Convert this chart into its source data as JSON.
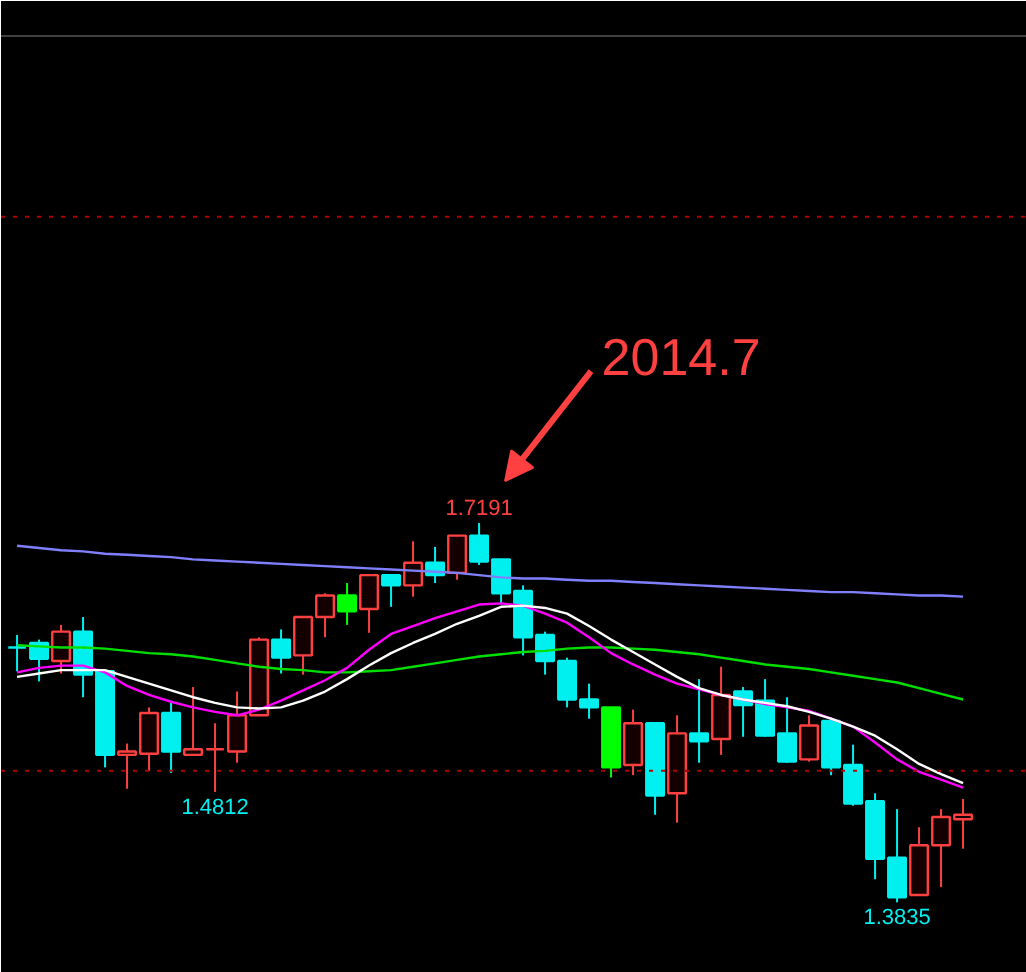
{
  "chart_data": {
    "type": "candlestick",
    "categories": [
      null,
      null,
      null,
      null,
      null,
      null,
      null,
      null,
      null,
      null,
      null,
      null,
      null,
      null,
      null,
      null,
      null,
      null,
      null,
      null,
      null,
      null,
      null,
      null,
      null,
      null,
      null,
      null,
      null,
      null,
      null,
      null,
      null,
      null,
      null,
      null,
      null,
      null,
      null,
      null,
      null,
      null,
      null,
      null
    ],
    "ohlc": [
      [
        1.609,
        1.62,
        1.588,
        1.609
      ],
      [
        1.613,
        1.616,
        1.579,
        1.599
      ],
      [
        1.597,
        1.629,
        1.586,
        1.623
      ],
      [
        1.623,
        1.636,
        1.565,
        1.585
      ],
      [
        1.588,
        1.588,
        1.503,
        1.514
      ],
      [
        1.514,
        1.524,
        1.484,
        1.517
      ],
      [
        1.515,
        1.556,
        1.5,
        1.551
      ],
      [
        1.551,
        1.56,
        1.498,
        1.517
      ],
      [
        1.514,
        1.574,
        1.514,
        1.519
      ],
      [
        1.519,
        1.542,
        1.4812,
        1.519
      ],
      [
        1.517,
        1.57,
        1.507,
        1.549
      ],
      [
        1.549,
        1.618,
        1.549,
        1.616
      ],
      [
        1.616,
        1.625,
        1.586,
        1.6
      ],
      [
        1.602,
        1.636,
        1.585,
        1.636
      ],
      [
        1.636,
        1.657,
        1.618,
        1.655
      ],
      [
        1.655,
        1.666,
        1.629,
        1.641
      ],
      [
        1.643,
        1.673,
        1.622,
        1.673
      ],
      [
        1.673,
        1.673,
        1.645,
        1.664
      ],
      [
        1.664,
        1.703,
        1.654,
        1.684
      ],
      [
        1.684,
        1.698,
        1.666,
        1.673
      ],
      [
        1.675,
        1.708,
        1.669,
        1.708
      ],
      [
        1.708,
        1.7191,
        1.682,
        1.685
      ],
      [
        1.687,
        1.687,
        1.648,
        1.657
      ],
      [
        1.659,
        1.664,
        1.602,
        1.618
      ],
      [
        1.62,
        1.623,
        1.585,
        1.597
      ],
      [
        1.597,
        1.6,
        1.556,
        1.563
      ],
      [
        1.563,
        1.577,
        1.546,
        1.556
      ],
      [
        1.556,
        1.556,
        1.494,
        1.503
      ],
      [
        1.505,
        1.554,
        1.496,
        1.542
      ],
      [
        1.542,
        1.542,
        1.461,
        1.478
      ],
      [
        1.48,
        1.549,
        1.454,
        1.533
      ],
      [
        1.533,
        1.581,
        1.507,
        1.526
      ],
      [
        1.528,
        1.592,
        1.514,
        1.567
      ],
      [
        1.57,
        1.574,
        1.53,
        1.558
      ],
      [
        1.562,
        1.581,
        1.53,
        1.531
      ],
      [
        1.533,
        1.565,
        1.507,
        1.508
      ],
      [
        1.51,
        1.549,
        1.508,
        1.54
      ],
      [
        1.544,
        1.547,
        1.496,
        1.503
      ],
      [
        1.505,
        1.523,
        1.469,
        1.471
      ],
      [
        1.473,
        1.48,
        1.404,
        1.422
      ],
      [
        1.423,
        1.466,
        1.3835,
        1.388
      ],
      [
        1.39,
        1.45,
        1.39,
        1.434
      ],
      [
        1.434,
        1.466,
        1.397,
        1.459
      ],
      [
        1.457,
        1.475,
        1.431,
        1.461
      ]
    ],
    "colors": [
      "#00f0f0",
      "#00f0f0",
      "#ff4040",
      "#00f0f0",
      "#00f0f0",
      "#ff4040",
      "#ff4040",
      "#00f0f0",
      "#ff4040",
      "#ff4040",
      "#ff4040",
      "#ff4040",
      "#00f0f0",
      "#ff4040",
      "#ff4040",
      "#00ff00",
      "#ff4040",
      "#00f0f0",
      "#ff4040",
      "#00f0f0",
      "#ff4040",
      "#00f0f0",
      "#00f0f0",
      "#00f0f0",
      "#00f0f0",
      "#00f0f0",
      "#00f0f0",
      "#00ff00",
      "#ff4040",
      "#00f0f0",
      "#ff4040",
      "#00f0f0",
      "#ff4040",
      "#00f0f0",
      "#00f0f0",
      "#00f0f0",
      "#ff4040",
      "#00f0f0",
      "#00f0f0",
      "#00f0f0",
      "#00f0f0",
      "#ff4040",
      "#ff4040",
      "#ff4040"
    ],
    "series": [
      {
        "type": "line",
        "color": "#8080ff",
        "values": [
          1.699,
          1.697,
          1.695,
          1.694,
          1.692,
          1.691,
          1.69,
          1.689,
          1.687,
          1.686,
          1.685,
          1.684,
          1.683,
          1.682,
          1.681,
          1.68,
          1.679,
          1.678,
          1.677,
          1.676,
          1.675,
          1.673,
          1.671,
          1.67,
          1.67,
          1.669,
          1.668,
          1.668,
          1.667,
          1.666,
          1.665,
          1.664,
          1.663,
          1.662,
          1.661,
          1.66,
          1.659,
          1.658,
          1.658,
          1.657,
          1.656,
          1.655,
          1.655,
          1.654
        ]
      },
      {
        "type": "line",
        "color": "#00e000",
        "values": [
          1.611,
          1.61,
          1.609,
          1.609,
          1.608,
          1.606,
          1.604,
          1.603,
          1.601,
          1.598,
          1.595,
          1.592,
          1.59,
          1.589,
          1.587,
          1.587,
          1.588,
          1.589,
          1.592,
          1.595,
          1.598,
          1.601,
          1.603,
          1.605,
          1.606,
          1.608,
          1.609,
          1.609,
          1.608,
          1.607,
          1.605,
          1.603,
          1.6,
          1.597,
          1.594,
          1.592,
          1.59,
          1.587,
          1.584,
          1.581,
          1.578,
          1.573,
          1.568,
          1.563
        ]
      },
      {
        "type": "line",
        "color": "#ff00ff",
        "values": [
          1.587,
          1.591,
          1.593,
          1.593,
          1.587,
          1.575,
          1.567,
          1.561,
          1.556,
          1.552,
          1.549,
          1.554,
          1.562,
          1.571,
          1.58,
          1.591,
          1.607,
          1.621,
          1.628,
          1.635,
          1.641,
          1.647,
          1.648,
          1.646,
          1.639,
          1.631,
          1.618,
          1.604,
          1.594,
          1.585,
          1.577,
          1.572,
          1.567,
          1.563,
          1.559,
          1.556,
          1.553,
          1.546,
          1.539,
          1.525,
          1.51,
          1.499,
          1.492,
          1.485
        ]
      },
      {
        "type": "line",
        "color": "#ffffff",
        "values": [
          1.583,
          1.586,
          1.589,
          1.589,
          1.589,
          1.583,
          1.577,
          1.571,
          1.565,
          1.56,
          1.556,
          1.555,
          1.556,
          1.562,
          1.57,
          1.581,
          1.593,
          1.604,
          1.613,
          1.621,
          1.63,
          1.637,
          1.645,
          1.646,
          1.644,
          1.639,
          1.628,
          1.616,
          1.605,
          1.594,
          1.583,
          1.573,
          1.567,
          1.563,
          1.56,
          1.557,
          1.552,
          1.546,
          1.539,
          1.531,
          1.519,
          1.506,
          1.497,
          1.489
        ]
      }
    ],
    "ylim": [
      1.321,
      2.181
    ],
    "tick_labels": false,
    "ref_lines": [
      {
        "axis": "y",
        "value": 1.99,
        "color": "#b00000",
        "line_style": "dotted"
      },
      {
        "axis": "y",
        "value": 1.5,
        "color": "#b00000",
        "line_style": "dotted"
      },
      {
        "axis": "y",
        "value": 2.15,
        "color": "#404040",
        "line_style": "solid"
      }
    ],
    "annotations": [
      "2014.7",
      {
        "text": "1.7191",
        "y": 1.7191
      },
      {
        "text": "1.4812",
        "y": 1.4812
      },
      {
        "text": "1.3835",
        "y": 1.3835
      }
    ]
  }
}
